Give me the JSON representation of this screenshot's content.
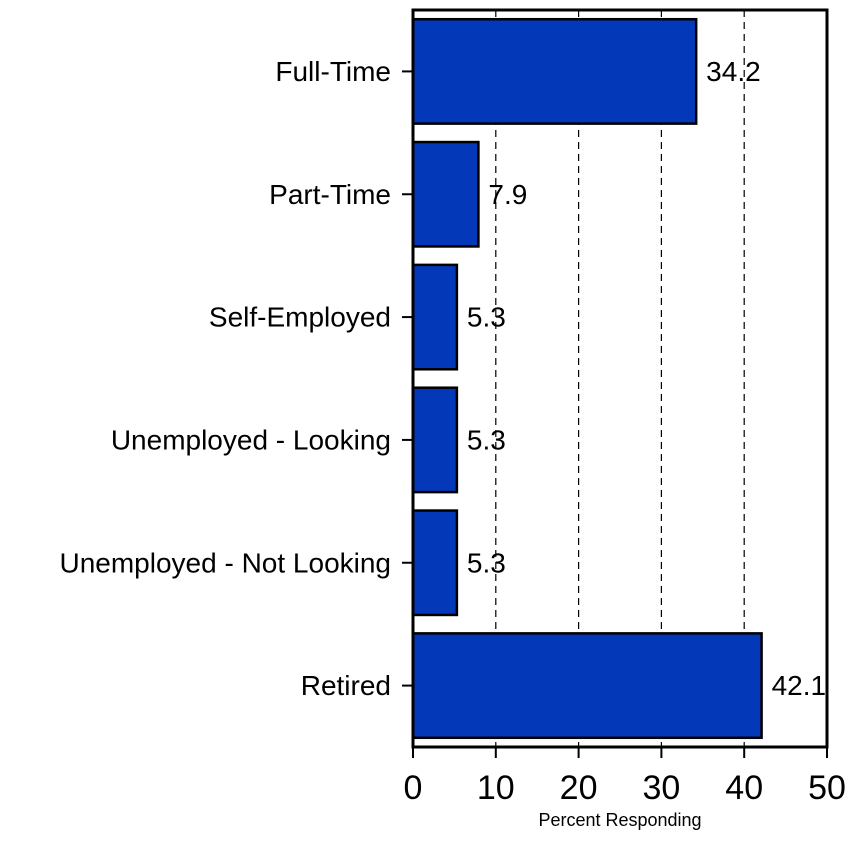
{
  "chart_data": {
    "type": "bar",
    "orientation": "horizontal",
    "categories": [
      "Full-Time",
      "Part-Time",
      "Self-Employed",
      "Unemployed - Looking",
      "Unemployed - Not Looking",
      "Retired"
    ],
    "values": [
      34.2,
      7.9,
      5.3,
      5.3,
      5.3,
      42.1
    ],
    "value_labels": [
      "34.2",
      "7.9",
      "5.3",
      "5.3",
      "5.3",
      "42.1"
    ],
    "xlabel": "Percent Responding",
    "xlim": [
      0,
      50
    ],
    "xticks": [
      0,
      10,
      20,
      30,
      40,
      50
    ],
    "xtick_labels": [
      "0",
      "10",
      "20",
      "30",
      "40",
      "50"
    ],
    "grid": "vertical dashed",
    "bar_color": "#0339b8",
    "bar_edge_color": "#000000"
  }
}
